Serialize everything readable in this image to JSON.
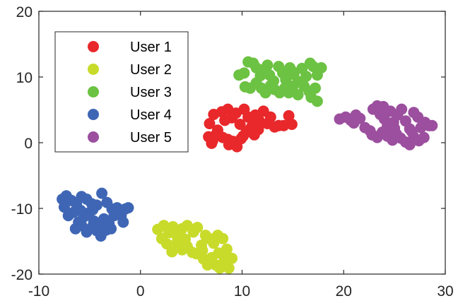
{
  "chart_data": {
    "type": "scatter",
    "title": "",
    "xlabel": "",
    "ylabel": "",
    "xlim": [
      -10,
      30
    ],
    "ylim": [
      -20,
      20
    ],
    "xticks": [
      -10,
      0,
      10,
      20,
      30
    ],
    "yticks": [
      -20,
      -10,
      0,
      10,
      20
    ],
    "xtick_labels": [
      "-10",
      "0",
      "10",
      "20",
      "30"
    ],
    "ytick_labels": [
      "-20",
      "-10",
      "0",
      "10",
      "20"
    ],
    "grid": false,
    "legend_position": "top-left",
    "series": [
      {
        "name": "User 1",
        "color": "#e8282b",
        "points": [
          [
            6.8,
            2.9
          ],
          [
            7.2,
            4.3
          ],
          [
            7.6,
            1.9
          ],
          [
            8.0,
            4.7
          ],
          [
            8.3,
            3.4
          ],
          [
            8.6,
            5.1
          ],
          [
            9.0,
            3.8
          ],
          [
            9.4,
            4.5
          ],
          [
            9.8,
            2.8
          ],
          [
            10.2,
            5.1
          ],
          [
            10.6,
            3.9
          ],
          [
            11.0,
            2.6
          ],
          [
            11.3,
            4.2
          ],
          [
            11.7,
            3.3
          ],
          [
            12.1,
            4.8
          ],
          [
            12.5,
            2.9
          ],
          [
            12.8,
            3.9
          ],
          [
            13.2,
            2.4
          ],
          [
            13.6,
            2.6
          ],
          [
            14.1,
            2.6
          ],
          [
            14.6,
            4.1
          ],
          [
            14.9,
            2.8
          ],
          [
            6.7,
            0.9
          ],
          [
            7.1,
            0.3
          ],
          [
            7.5,
            1.4
          ],
          [
            8.1,
            0.8
          ],
          [
            8.6,
            0.5
          ],
          [
            9.1,
            0.2
          ],
          [
            9.5,
            -0.6
          ],
          [
            9.9,
            0.6
          ],
          [
            10.4,
            1.6
          ],
          [
            10.8,
            2.1
          ],
          [
            11.2,
            1.2
          ],
          [
            9.3,
            -0.2
          ],
          [
            8.7,
            -0.3
          ],
          [
            7.0,
            -0.1
          ],
          [
            10.1,
            1.0
          ],
          [
            11.6,
            2.0
          ]
        ]
      },
      {
        "name": "User 2",
        "color": "#c8db2a",
        "points": [
          [
            1.7,
            -13.2
          ],
          [
            2.3,
            -12.6
          ],
          [
            2.8,
            -13.7
          ],
          [
            3.2,
            -12.8
          ],
          [
            3.6,
            -14.2
          ],
          [
            4.1,
            -13.1
          ],
          [
            4.6,
            -12.6
          ],
          [
            5.2,
            -13.6
          ],
          [
            5.6,
            -12.9
          ],
          [
            2.1,
            -14.6
          ],
          [
            2.6,
            -15.4
          ],
          [
            3.1,
            -16.6
          ],
          [
            3.6,
            -15.2
          ],
          [
            4.1,
            -16.3
          ],
          [
            4.6,
            -15.8
          ],
          [
            5.1,
            -16.7
          ],
          [
            5.5,
            -16.9
          ],
          [
            6.0,
            -15.6
          ],
          [
            6.4,
            -14.1
          ],
          [
            6.8,
            -14.6
          ],
          [
            7.2,
            -15.3
          ],
          [
            7.6,
            -14.1
          ],
          [
            8.1,
            -14.6
          ],
          [
            8.5,
            -16.2
          ],
          [
            6.2,
            -17.7
          ],
          [
            6.6,
            -18.6
          ],
          [
            7.0,
            -17.5
          ],
          [
            7.4,
            -18.6
          ],
          [
            7.8,
            -19.1
          ],
          [
            8.2,
            -18.2
          ],
          [
            8.7,
            -19.1
          ],
          [
            9.0,
            -17.6
          ],
          [
            6.1,
            -16.4
          ],
          [
            7.7,
            -16.8
          ],
          [
            8.4,
            -17.1
          ],
          [
            4.4,
            -14.7
          ]
        ]
      },
      {
        "name": "User 3",
        "color": "#6cc242",
        "points": [
          [
            9.7,
            10.3
          ],
          [
            10.2,
            10.6
          ],
          [
            10.6,
            12.3
          ],
          [
            11.1,
            12.1
          ],
          [
            11.4,
            11.4
          ],
          [
            11.8,
            10.2
          ],
          [
            12.2,
            11.2
          ],
          [
            12.7,
            10.3
          ],
          [
            13.1,
            9.4
          ],
          [
            13.6,
            11.6
          ],
          [
            14.0,
            10.6
          ],
          [
            14.3,
            9.6
          ],
          [
            14.7,
            11.4
          ],
          [
            15.1,
            10.4
          ],
          [
            15.5,
            9.3
          ],
          [
            15.9,
            11.3
          ],
          [
            16.3,
            10.1
          ],
          [
            16.7,
            12.1
          ],
          [
            17.0,
            11.6
          ],
          [
            17.4,
            10.3
          ],
          [
            17.8,
            11.4
          ],
          [
            10.3,
            8.5
          ],
          [
            10.8,
            8.3
          ],
          [
            11.4,
            9.1
          ],
          [
            11.9,
            8.3
          ],
          [
            12.3,
            7.6
          ],
          [
            12.8,
            8.7
          ],
          [
            13.2,
            8.1
          ],
          [
            13.7,
            7.6
          ],
          [
            14.2,
            8.3
          ],
          [
            14.6,
            7.6
          ],
          [
            15.0,
            8.6
          ],
          [
            15.5,
            7.3
          ],
          [
            16.1,
            8.6
          ],
          [
            16.6,
            7.8
          ],
          [
            17.2,
            8.3
          ],
          [
            17.4,
            6.3
          ],
          [
            16.8,
            6.9
          ],
          [
            12.5,
            11.8
          ],
          [
            14.9,
            10.9
          ]
        ]
      },
      {
        "name": "User 4",
        "color": "#3f66b5",
        "points": [
          [
            -7.7,
            -8.6
          ],
          [
            -7.3,
            -8.1
          ],
          [
            -6.8,
            -8.8
          ],
          [
            -6.3,
            -9.3
          ],
          [
            -5.8,
            -8.2
          ],
          [
            -5.3,
            -8.6
          ],
          [
            -4.8,
            -9.3
          ],
          [
            -4.3,
            -9.5
          ],
          [
            -3.8,
            -7.7
          ],
          [
            -3.3,
            -9.1
          ],
          [
            -2.8,
            -10.1
          ],
          [
            -2.3,
            -9.9
          ],
          [
            -1.9,
            -11.1
          ],
          [
            -1.5,
            -10.1
          ],
          [
            -1.2,
            -9.9
          ],
          [
            -7.1,
            -11.1
          ],
          [
            -6.6,
            -10.6
          ],
          [
            -6.1,
            -12.1
          ],
          [
            -5.6,
            -11.3
          ],
          [
            -5.1,
            -10.7
          ],
          [
            -4.6,
            -11.9
          ],
          [
            -4.1,
            -12.6
          ],
          [
            -3.6,
            -11.6
          ],
          [
            -3.1,
            -12.3
          ],
          [
            -2.6,
            -11.1
          ],
          [
            -6.4,
            -13.1
          ],
          [
            -5.8,
            -12.6
          ],
          [
            -5.3,
            -13.6
          ],
          [
            -4.8,
            -12.9
          ],
          [
            -4.3,
            -13.4
          ],
          [
            -3.9,
            -14.2
          ],
          [
            -3.4,
            -13.3
          ],
          [
            -2.9,
            -13.1
          ],
          [
            -7.5,
            -9.8
          ],
          [
            -4.7,
            -10.2
          ],
          [
            -1.7,
            -12.1
          ],
          [
            -5.9,
            -10.3
          ]
        ]
      },
      {
        "name": "User 5",
        "color": "#9b4f9e",
        "points": [
          [
            19.6,
            3.6
          ],
          [
            20.2,
            3.9
          ],
          [
            20.7,
            3.4
          ],
          [
            21.2,
            4.2
          ],
          [
            21.6,
            3.7
          ],
          [
            22.1,
            2.3
          ],
          [
            22.6,
            1.8
          ],
          [
            22.9,
            5.1
          ],
          [
            23.3,
            5.6
          ],
          [
            23.6,
            4.3
          ],
          [
            24.0,
            3.6
          ],
          [
            24.3,
            2.6
          ],
          [
            24.6,
            4.8
          ],
          [
            24.9,
            3.1
          ],
          [
            25.3,
            4.2
          ],
          [
            25.7,
            5.1
          ],
          [
            26.1,
            3.3
          ],
          [
            26.5,
            2.1
          ],
          [
            26.9,
            4.6
          ],
          [
            27.3,
            3.9
          ],
          [
            27.6,
            2.3
          ],
          [
            28.0,
            3.1
          ],
          [
            28.4,
            2.6
          ],
          [
            22.8,
            1.2
          ],
          [
            23.3,
            0.8
          ],
          [
            23.8,
            1.6
          ],
          [
            24.3,
            1.0
          ],
          [
            24.8,
            0.4
          ],
          [
            25.2,
            1.3
          ],
          [
            25.6,
            0.7
          ],
          [
            26.1,
            0.1
          ],
          [
            26.5,
            -0.3
          ],
          [
            26.9,
            0.9
          ],
          [
            27.4,
            0.3
          ],
          [
            27.9,
            0.8
          ],
          [
            23.9,
            5.5
          ],
          [
            25.0,
            2.2
          ],
          [
            26.7,
            1.7
          ],
          [
            28.7,
            2.6
          ],
          [
            21.0,
            3.0
          ]
        ]
      }
    ]
  }
}
